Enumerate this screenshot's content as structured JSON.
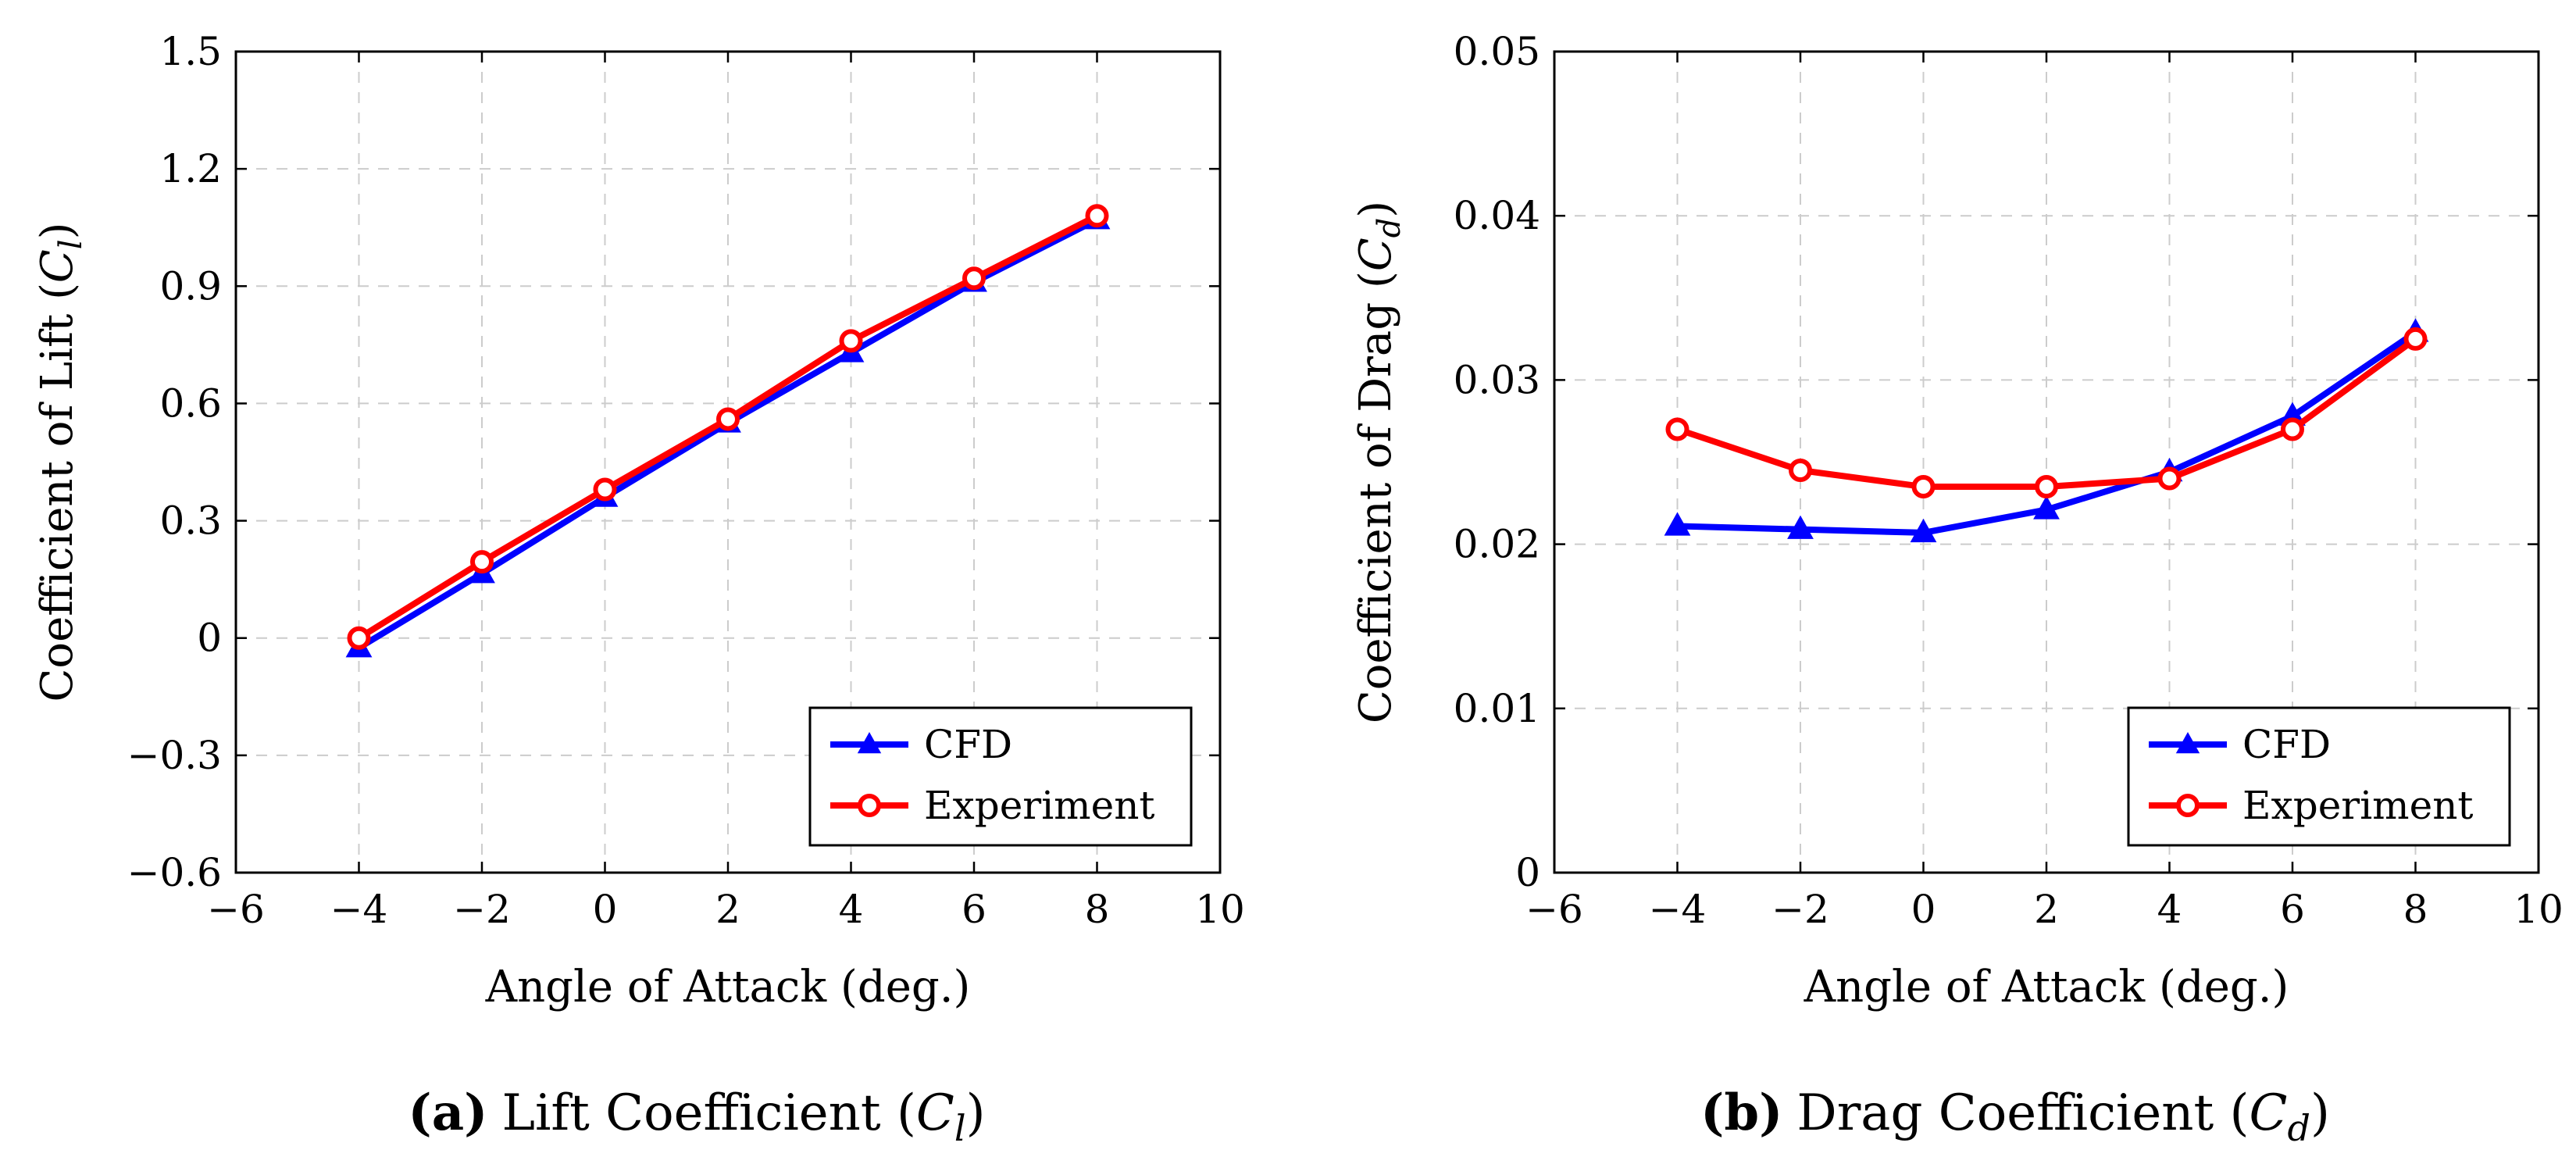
{
  "figure": {
    "colors": {
      "cfd": "#0000ff",
      "experiment": "#ff0000",
      "grid": "#cccccc",
      "axis": "#000000"
    },
    "markers": {
      "cfd": "triangle",
      "experiment": "circle-open"
    }
  },
  "chart_data": [
    {
      "id": "a",
      "type": "line",
      "caption_prefix": "(a)",
      "caption_main": "Lift Coefficient (",
      "caption_sym": "C",
      "caption_sub": "l",
      "caption_close": ")",
      "xlabel": "Angle of Attack (deg.)",
      "ylabel_main": "Coefficient of Lift (",
      "ylabel_sym": "C",
      "ylabel_sub": "l",
      "ylabel_close": ")",
      "xlim": [
        -6,
        10
      ],
      "ylim": [
        -0.6,
        1.5
      ],
      "xticks": [
        -6,
        -4,
        -2,
        0,
        2,
        4,
        6,
        8,
        10
      ],
      "xtick_labels": [
        "−6",
        "−4",
        "−2",
        "0",
        "2",
        "4",
        "6",
        "8",
        "10"
      ],
      "yticks": [
        -0.6,
        -0.3,
        0,
        0.3,
        0.6,
        0.9,
        1.2,
        1.5
      ],
      "ytick_labels": [
        "−0.6",
        "−0.3",
        "0",
        "0.3",
        "0.6",
        "0.9",
        "1.2",
        "1.5"
      ],
      "grid": true,
      "legend_position": "bottom-right",
      "x": [
        -4,
        -2,
        0,
        2,
        4,
        6,
        8
      ],
      "series": [
        {
          "name": "CFD",
          "values": [
            -0.025,
            0.165,
            0.36,
            0.55,
            0.73,
            0.91,
            1.07
          ]
        },
        {
          "name": "Experiment",
          "values": [
            0.0,
            0.195,
            0.38,
            0.56,
            0.76,
            0.92,
            1.08
          ]
        }
      ]
    },
    {
      "id": "b",
      "type": "line",
      "caption_prefix": "(b)",
      "caption_main": "Drag Coefficient (",
      "caption_sym": "C",
      "caption_sub": "d",
      "caption_close": ")",
      "xlabel": "Angle of Attack (deg.)",
      "ylabel_main": "Coefficient of Drag (",
      "ylabel_sym": "C",
      "ylabel_sub": "d",
      "ylabel_close": ")",
      "xlim": [
        -6,
        10
      ],
      "ylim": [
        0,
        0.05
      ],
      "xticks": [
        -6,
        -4,
        -2,
        0,
        2,
        4,
        6,
        8,
        10
      ],
      "xtick_labels": [
        "−6",
        "−4",
        "−2",
        "0",
        "2",
        "4",
        "6",
        "8",
        "10"
      ],
      "yticks": [
        0,
        0.01,
        0.02,
        0.03,
        0.04,
        0.05
      ],
      "ytick_labels": [
        "0",
        "0.01",
        "0.02",
        "0.03",
        "0.04",
        "0.05"
      ],
      "grid": true,
      "legend_position": "bottom-right",
      "x": [
        -4,
        -2,
        0,
        2,
        4,
        6,
        8
      ],
      "series": [
        {
          "name": "CFD",
          "values": [
            0.0211,
            0.0209,
            0.0207,
            0.0221,
            0.0244,
            0.0278,
            0.0329
          ]
        },
        {
          "name": "Experiment",
          "values": [
            0.027,
            0.0245,
            0.0235,
            0.0235,
            0.024,
            0.027,
            0.0325
          ]
        }
      ]
    }
  ]
}
